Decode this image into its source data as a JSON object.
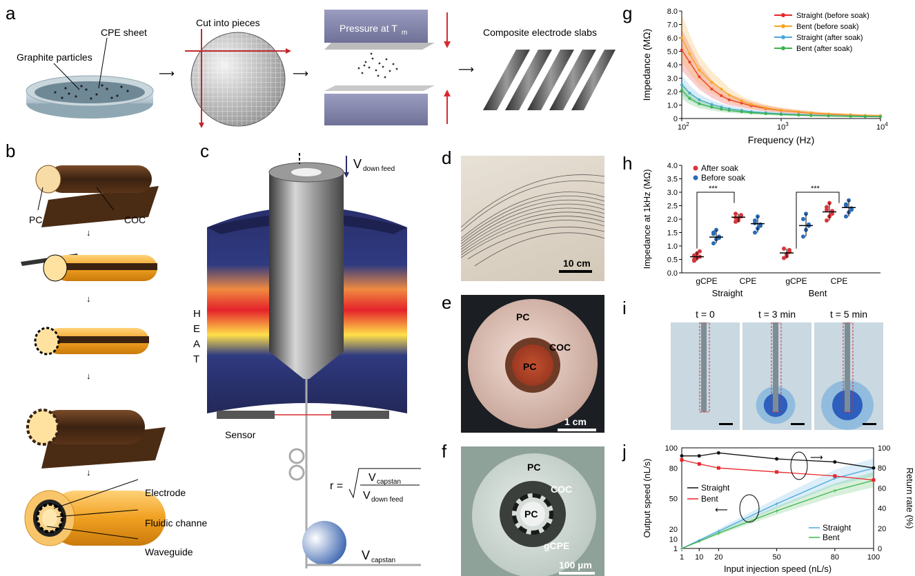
{
  "panel_labels": [
    "a",
    "b",
    "c",
    "d",
    "e",
    "f",
    "g",
    "h",
    "i",
    "j"
  ],
  "panel_a": {
    "cpe_sheet": "CPE sheet",
    "graphite": "Graphite particles",
    "cut": "Cut into pieces",
    "pressure": "Pressure at T",
    "pressure_sub": "m",
    "slabs": "Composite electrode slabs"
  },
  "panel_b": {
    "pc": "PC",
    "coc": "COC",
    "electrode": "Electrode",
    "fluidic": "Fluidic channel",
    "waveguide": "Waveguide"
  },
  "panel_c": {
    "v_down_main": "V",
    "v_down_sub": "down feed",
    "heat": [
      "H",
      "E",
      "A",
      "T"
    ],
    "sensor": "Sensor",
    "eq_r": "r =",
    "eq_num_main": "V",
    "eq_num_sub": "capstan",
    "eq_den_main": "V",
    "eq_den_sub": "down feed",
    "v_capstan_main": "V",
    "v_capstan_sub": "capstan"
  },
  "panel_d": {
    "scalebar": "10 cm"
  },
  "panel_e": {
    "pc_outer": "PC",
    "coc": "COC",
    "pc_inner": "PC",
    "scalebar": "1 cm"
  },
  "panel_f": {
    "pc_outer": "PC",
    "coc": "COC",
    "pc_inner": "PC",
    "gcpe": "gCPE",
    "scalebar": "100 µm"
  },
  "panel_i": {
    "times": [
      "t = 0",
      "t = 3 min",
      "t = 5 min"
    ],
    "dye_spread": [
      0.0,
      0.6,
      1.0
    ]
  },
  "chart_data": [
    {
      "id": "g",
      "type": "line",
      "xlabel": "Frequency (Hz)",
      "ylabel": "Impedance (MΩ)",
      "xscale": "log",
      "xlim": [
        100,
        10000
      ],
      "ylim": [
        0,
        8
      ],
      "xticks": [
        "10^2",
        "10^3",
        "10^4"
      ],
      "yticks": [
        "0",
        "1.0",
        "2.0",
        "3.0",
        "4.0",
        "5.0",
        "6.0",
        "7.0",
        "8.0"
      ],
      "legend": "top-right",
      "x": [
        100,
        120,
        150,
        200,
        250,
        300,
        400,
        500,
        700,
        1000,
        1500,
        2000,
        3000,
        5000,
        7000,
        10000
      ],
      "series": [
        {
          "name": "Straight (before soak)",
          "color": "#e8262b",
          "marker": "triangle",
          "values": [
            5.1,
            4.2,
            3.1,
            2.2,
            1.7,
            1.4,
            1.15,
            0.95,
            0.75,
            0.6,
            0.48,
            0.4,
            0.32,
            0.26,
            0.22,
            0.2
          ]
        },
        {
          "name": "Bent (before soak)",
          "color": "#f5a623",
          "marker": "diamond",
          "values": [
            6.0,
            4.8,
            3.6,
            2.7,
            2.2,
            1.75,
            1.3,
            1.05,
            0.8,
            0.62,
            0.5,
            0.42,
            0.34,
            0.28,
            0.24,
            0.22
          ]
        },
        {
          "name": "Straight (after soak)",
          "color": "#4aa8e0",
          "marker": "square",
          "values": [
            2.5,
            1.9,
            1.4,
            1.05,
            0.85,
            0.72,
            0.6,
            0.5,
            0.42,
            0.35,
            0.29,
            0.25,
            0.21,
            0.18,
            0.16,
            0.15
          ]
        },
        {
          "name": "Bent (after soak)",
          "color": "#3cb44b",
          "marker": "circle",
          "values": [
            2.1,
            1.5,
            1.1,
            0.85,
            0.7,
            0.6,
            0.5,
            0.43,
            0.36,
            0.3,
            0.25,
            0.22,
            0.19,
            0.16,
            0.14,
            0.13
          ]
        }
      ]
    },
    {
      "id": "h",
      "type": "scatter",
      "ylabel": "Impedance at 1kHz (MΩ)",
      "ylim": [
        0,
        4.0
      ],
      "yticks": [
        "0.0",
        "0.5",
        "1.0",
        "1.5",
        "2.0",
        "2.5",
        "3.0",
        "3.5",
        "4.0"
      ],
      "categories": [
        "gCPE",
        "CPE",
        "gCPE",
        "CPE"
      ],
      "groups": [
        "Straight",
        "Bent"
      ],
      "legend": "top-left",
      "significance": "***",
      "series": [
        {
          "name": "After soak",
          "color": "#d9343a",
          "points": [
            [
              0.45,
              0.55,
              0.6,
              0.65,
              0.72,
              0.8,
              0.5
            ],
            [
              1.9,
              2.0,
              2.1,
              2.2,
              1.95,
              2.15,
              2.05
            ],
            [
              0.55,
              0.7,
              0.78,
              0.9,
              0.62,
              0.85
            ],
            [
              1.95,
              2.1,
              2.3,
              2.45,
              2.6,
              2.2,
              2.35
            ]
          ],
          "mean": [
            0.6,
            2.07,
            0.74,
            2.27
          ]
        },
        {
          "name": "Before soak",
          "color": "#2a6bb5",
          "points": [
            [
              1.1,
              1.25,
              1.35,
              1.5,
              1.6,
              1.3,
              1.45
            ],
            [
              1.5,
              1.65,
              1.8,
              1.95,
              2.1,
              1.75,
              1.85
            ],
            [
              1.35,
              1.6,
              1.8,
              2.0,
              2.2,
              1.75
            ],
            [
              2.1,
              2.25,
              2.4,
              2.55,
              2.7,
              2.35,
              2.5
            ]
          ],
          "mean": [
            1.33,
            1.83,
            1.76,
            2.43
          ]
        }
      ]
    },
    {
      "id": "j",
      "type": "line",
      "xlabel": "Input injection speed (nL/s)",
      "ylabel": "Output speed (nL/s)",
      "ylabel_right": "Return rate (%)",
      "x_ticks": [
        1,
        10,
        20,
        50,
        80,
        100
      ],
      "y_left_ticks": [
        1,
        10,
        20,
        50,
        80,
        100
      ],
      "y_right_ticks": [
        0,
        20,
        40,
        60,
        80,
        100
      ],
      "series_rate": [
        {
          "name": "Straight",
          "color": "#111111",
          "axis": "right",
          "x": [
            1,
            10,
            20,
            50,
            80,
            100
          ],
          "values": [
            92,
            92,
            95,
            89,
            86,
            80
          ]
        },
        {
          "name": "Bent",
          "color": "#e8262b",
          "axis": "right",
          "x": [
            1,
            10,
            20,
            50,
            80,
            100
          ],
          "values": [
            88,
            84,
            80,
            76,
            72,
            68
          ]
        }
      ],
      "series_output": [
        {
          "name": "Straight",
          "color": "#4aa8e0",
          "axis": "left",
          "x": [
            1,
            10,
            20,
            50,
            80,
            100
          ],
          "values": [
            1,
            9,
            18,
            45,
            70,
            80
          ]
        },
        {
          "name": "Bent",
          "color": "#3cb44b",
          "axis": "left",
          "x": [
            1,
            10,
            20,
            50,
            80,
            100
          ],
          "values": [
            1,
            8,
            16,
            38,
            58,
            68
          ]
        }
      ]
    }
  ]
}
